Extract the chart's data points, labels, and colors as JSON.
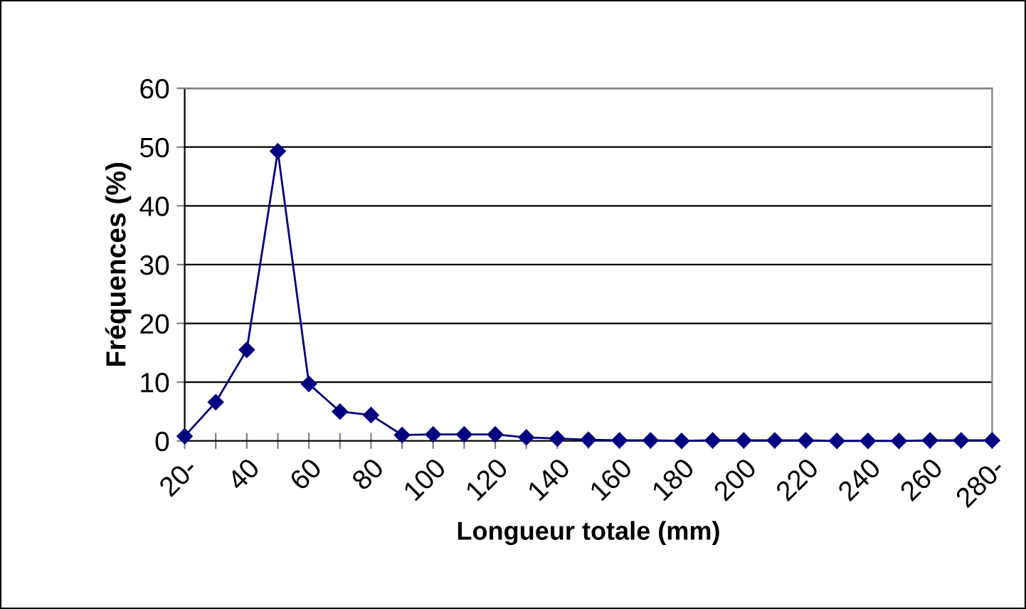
{
  "chart_data": {
    "type": "line",
    "xlabel": "Longueur totale (mm)",
    "ylabel": "Fréquences (%)",
    "categories": [
      "20-",
      null,
      "40",
      null,
      "60",
      null,
      "80",
      null,
      "100",
      null,
      "120",
      null,
      "140",
      null,
      "160",
      null,
      "180",
      null,
      "200",
      null,
      "220",
      null,
      "240",
      null,
      "260",
      null,
      "280-"
    ],
    "series": [
      {
        "color": "#000080",
        "values": [
          0.8,
          6.6,
          15.5,
          49.3,
          9.7,
          5.0,
          4.4,
          1.0,
          1.1,
          1.1,
          1.1,
          0.6,
          0.4,
          0.2,
          0.1,
          0.1,
          0,
          0.1,
          0.1,
          0.1,
          0.1,
          0,
          0,
          0,
          0.1,
          0.1,
          0.1
        ]
      }
    ],
    "ylim": [
      0,
      60
    ],
    "yticks": [
      0,
      10,
      20,
      30,
      40,
      50,
      60
    ],
    "grid": "y",
    "marker": "diamond",
    "line_style": "solid",
    "legend": false
  }
}
